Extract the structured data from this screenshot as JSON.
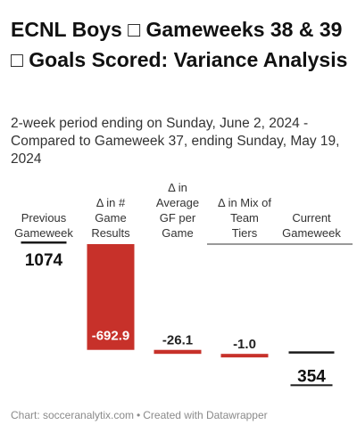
{
  "title": "ECNL Boys □ Gameweeks 38 & 39 □ Goals Scored: Variance Analysis",
  "subtitle": "2-week period ending on Sunday, June 2, 2024 - Compared to Gameweek 37, ending Sunday, May 19, 2024",
  "footer": {
    "source": "Chart: socceranalytix.com",
    "separator": "•",
    "credit": "Created with Datawrapper"
  },
  "chart_data": {
    "type": "bar",
    "subtype": "waterfall",
    "categories": [
      [
        "Previous",
        "Gameweek"
      ],
      [
        "Δ in #",
        "Game",
        "Results"
      ],
      [
        "Δ in",
        "Average",
        "GF per",
        "Game"
      ],
      [
        "Δ in Mix of",
        "Team",
        "Tiers"
      ],
      [
        "Current",
        "Gameweek"
      ]
    ],
    "values": [
      1074,
      -692.9,
      -26.1,
      -1.0,
      354
    ],
    "value_labels": [
      "1074",
      "-692.9",
      "-26.1",
      "-1.0",
      "354"
    ],
    "kinds": [
      "total",
      "delta",
      "delta",
      "delta",
      "total"
    ],
    "colors": {
      "negative": "#c7312a",
      "total_marker": "#1a1a1a",
      "baseline": "#333333"
    }
  }
}
